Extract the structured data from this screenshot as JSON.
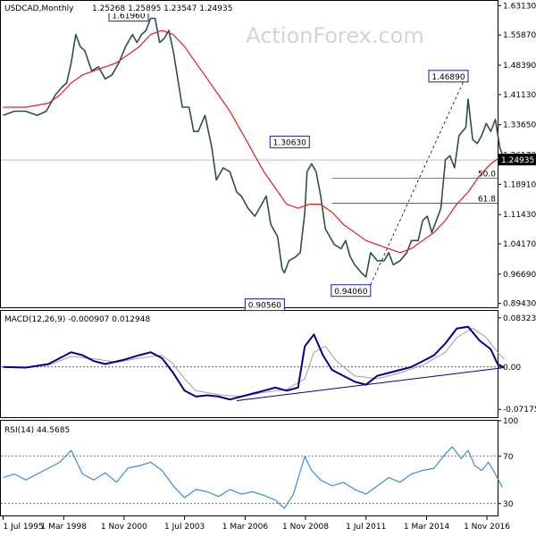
{
  "watermark": "ActionForex.com",
  "chart_data": {
    "type": "line",
    "colors": {
      "price": "#2f4f4f",
      "sma": "#e02020",
      "macd": "#00008b",
      "signal": "#a0a0a0",
      "rsi": "#3a8fd8",
      "guides": "#000000"
    },
    "x_range": [
      1995.4,
      2017.3
    ],
    "x_ticks": [
      {
        "value": 1995.5,
        "label": "1 Jul 1995"
      },
      {
        "value": 1998.17,
        "label": "1 Mar 1998"
      },
      {
        "value": 2000.83,
        "label": "1 Nov 2000"
      },
      {
        "value": 2003.5,
        "label": "1 Jul 2003"
      },
      {
        "value": 2006.17,
        "label": "1 Mar 2006"
      },
      {
        "value": 2008.83,
        "label": "1 Nov 2008"
      },
      {
        "value": 2011.5,
        "label": "1 Jul 2011"
      },
      {
        "value": 2014.17,
        "label": "1 Mar 2014"
      },
      {
        "value": 2016.83,
        "label": "1 Nov 2016"
      }
    ],
    "price_panel": {
      "title": "USDCAD,Monthly",
      "ohlc_text": "1.25268 1.25895 1.23547 1.24935",
      "ylim": [
        0.8848,
        1.6431
      ],
      "y_ticks": [
        1.6313,
        1.5587,
        1.4839,
        1.4113,
        1.3365,
        1.2617,
        1.1891,
        1.1143,
        1.0417,
        0.9669,
        0.8943
      ],
      "tick_labels": [
        "1.63130",
        "1.55870",
        "1.48390",
        "1.41130",
        "1.33650",
        "1.26170",
        "1.18910",
        "1.11430",
        "1.04170",
        "0.96690",
        "0.89430"
      ],
      "current_price": 1.24935,
      "current_label": "1.24935",
      "price_series": [
        [
          1995.5,
          1.36
        ],
        [
          1996.0,
          1.37
        ],
        [
          1996.5,
          1.37
        ],
        [
          1997.0,
          1.36
        ],
        [
          1997.4,
          1.37
        ],
        [
          1997.8,
          1.41
        ],
        [
          1998.1,
          1.43
        ],
        [
          1998.3,
          1.44
        ],
        [
          1998.5,
          1.49
        ],
        [
          1998.7,
          1.56
        ],
        [
          1998.9,
          1.53
        ],
        [
          1999.1,
          1.52
        ],
        [
          1999.4,
          1.47
        ],
        [
          1999.7,
          1.48
        ],
        [
          2000.0,
          1.45
        ],
        [
          2000.3,
          1.46
        ],
        [
          2000.6,
          1.49
        ],
        [
          2000.9,
          1.53
        ],
        [
          2001.2,
          1.56
        ],
        [
          2001.4,
          1.54
        ],
        [
          2001.6,
          1.56
        ],
        [
          2001.8,
          1.57
        ],
        [
          2002.0,
          1.6
        ],
        [
          2002.2,
          1.6
        ],
        [
          2002.4,
          1.54
        ],
        [
          2002.6,
          1.55
        ],
        [
          2002.8,
          1.57
        ],
        [
          2003.0,
          1.52
        ],
        [
          2003.2,
          1.45
        ],
        [
          2003.4,
          1.38
        ],
        [
          2003.7,
          1.38
        ],
        [
          2003.9,
          1.32
        ],
        [
          2004.1,
          1.32
        ],
        [
          2004.4,
          1.36
        ],
        [
          2004.7,
          1.28
        ],
        [
          2004.9,
          1.2
        ],
        [
          2005.2,
          1.23
        ],
        [
          2005.5,
          1.22
        ],
        [
          2005.8,
          1.17
        ],
        [
          2006.0,
          1.16
        ],
        [
          2006.3,
          1.13
        ],
        [
          2006.6,
          1.11
        ],
        [
          2006.9,
          1.14
        ],
        [
          2007.1,
          1.16
        ],
        [
          2007.3,
          1.09
        ],
        [
          2007.6,
          1.06
        ],
        [
          2007.8,
          0.98
        ],
        [
          2007.9,
          0.97
        ],
        [
          2008.1,
          1.0
        ],
        [
          2008.4,
          1.01
        ],
        [
          2008.6,
          1.02
        ],
        [
          2008.8,
          1.12
        ],
        [
          2008.9,
          1.22
        ],
        [
          2009.1,
          1.24
        ],
        [
          2009.3,
          1.22
        ],
        [
          2009.5,
          1.16
        ],
        [
          2009.7,
          1.08
        ],
        [
          2009.9,
          1.06
        ],
        [
          2010.1,
          1.04
        ],
        [
          2010.4,
          1.03
        ],
        [
          2010.6,
          1.05
        ],
        [
          2010.8,
          1.01
        ],
        [
          2011.0,
          0.99
        ],
        [
          2011.3,
          0.97
        ],
        [
          2011.5,
          0.96
        ],
        [
          2011.7,
          1.02
        ],
        [
          2012.0,
          1.0
        ],
        [
          2012.3,
          1.0
        ],
        [
          2012.5,
          1.02
        ],
        [
          2012.7,
          0.99
        ],
        [
          2013.0,
          1.0
        ],
        [
          2013.3,
          1.02
        ],
        [
          2013.5,
          1.05
        ],
        [
          2013.8,
          1.05
        ],
        [
          2014.0,
          1.1
        ],
        [
          2014.2,
          1.11
        ],
        [
          2014.4,
          1.07
        ],
        [
          2014.6,
          1.1
        ],
        [
          2014.8,
          1.13
        ],
        [
          2015.0,
          1.25
        ],
        [
          2015.2,
          1.26
        ],
        [
          2015.4,
          1.23
        ],
        [
          2015.6,
          1.31
        ],
        [
          2015.9,
          1.33
        ],
        [
          2016.0,
          1.4
        ],
        [
          2016.2,
          1.3
        ],
        [
          2016.4,
          1.29
        ],
        [
          2016.6,
          1.31
        ],
        [
          2016.8,
          1.34
        ],
        [
          2017.0,
          1.32
        ],
        [
          2017.2,
          1.35
        ],
        [
          2017.4,
          1.28
        ],
        [
          2017.6,
          1.25
        ]
      ],
      "sma_series": [
        [
          1995.5,
          1.38
        ],
        [
          1996.5,
          1.38
        ],
        [
          1997.5,
          1.39
        ],
        [
          1998.0,
          1.41
        ],
        [
          1998.5,
          1.44
        ],
        [
          1999.0,
          1.46
        ],
        [
          1999.5,
          1.47
        ],
        [
          2000.0,
          1.48
        ],
        [
          2000.5,
          1.49
        ],
        [
          2001.0,
          1.51
        ],
        [
          2001.5,
          1.53
        ],
        [
          2002.0,
          1.56
        ],
        [
          2002.5,
          1.57
        ],
        [
          2003.0,
          1.56
        ],
        [
          2003.5,
          1.53
        ],
        [
          2004.0,
          1.49
        ],
        [
          2004.5,
          1.45
        ],
        [
          2005.0,
          1.41
        ],
        [
          2005.5,
          1.37
        ],
        [
          2006.0,
          1.32
        ],
        [
          2006.5,
          1.27
        ],
        [
          2007.0,
          1.22
        ],
        [
          2007.5,
          1.18
        ],
        [
          2008.0,
          1.14
        ],
        [
          2008.5,
          1.13
        ],
        [
          2009.0,
          1.14
        ],
        [
          2009.5,
          1.14
        ],
        [
          2010.0,
          1.12
        ],
        [
          2010.5,
          1.09
        ],
        [
          2011.0,
          1.07
        ],
        [
          2011.5,
          1.05
        ],
        [
          2012.0,
          1.04
        ],
        [
          2012.5,
          1.03
        ],
        [
          2013.0,
          1.02
        ],
        [
          2013.5,
          1.03
        ],
        [
          2014.0,
          1.05
        ],
        [
          2014.5,
          1.07
        ],
        [
          2015.0,
          1.1
        ],
        [
          2015.5,
          1.14
        ],
        [
          2016.0,
          1.17
        ],
        [
          2016.5,
          1.21
        ],
        [
          2017.0,
          1.24
        ],
        [
          2017.5,
          1.26
        ]
      ],
      "annotations": [
        {
          "label": "1.61960",
          "x": 2001.9,
          "y": 1.6196
        },
        {
          "label": "0.90560",
          "x": 2007.9,
          "y": 0.9056
        },
        {
          "label": "1.30630",
          "x": 2009.0,
          "y": 1.3063
        },
        {
          "label": "0.94060",
          "x": 2011.7,
          "y": 0.9406
        },
        {
          "label": "1.46890",
          "x": 2016.0,
          "y": 1.4689
        }
      ],
      "trend_line": {
        "from": [
          2011.7,
          0.9406
        ],
        "to": [
          2016.0,
          1.4689
        ]
      },
      "fib_levels": [
        {
          "label": "50.0",
          "y": 1.2048
        },
        {
          "label": "61.8",
          "y": 1.1425
        }
      ]
    },
    "macd_panel": {
      "label": "MACD(12,26,9) -0.000907 0.012948",
      "ylim": [
        -0.085,
        0.095
      ],
      "y_ticks": [
        0.083235,
        0.0,
        -0.071752
      ],
      "tick_labels": [
        "0.083235",
        "0.00",
        "-0.071752"
      ],
      "macd_series": [
        [
          1995.5,
          0.0
        ],
        [
          1996.5,
          -0.001
        ],
        [
          1997.5,
          0.005
        ],
        [
          1998.5,
          0.025
        ],
        [
          1999.0,
          0.02
        ],
        [
          1999.5,
          0.01
        ],
        [
          2000.0,
          0.005
        ],
        [
          2000.8,
          0.012
        ],
        [
          2001.5,
          0.02
        ],
        [
          2002.0,
          0.025
        ],
        [
          2002.5,
          0.015
        ],
        [
          2003.0,
          -0.01
        ],
        [
          2003.5,
          -0.04
        ],
        [
          2004.0,
          -0.05
        ],
        [
          2004.5,
          -0.048
        ],
        [
          2005.0,
          -0.05
        ],
        [
          2005.5,
          -0.055
        ],
        [
          2006.0,
          -0.05
        ],
        [
          2006.5,
          -0.045
        ],
        [
          2007.0,
          -0.04
        ],
        [
          2007.5,
          -0.035
        ],
        [
          2008.0,
          -0.04
        ],
        [
          2008.5,
          -0.035
        ],
        [
          2008.8,
          0.035
        ],
        [
          2009.2,
          0.055
        ],
        [
          2009.6,
          0.02
        ],
        [
          2010.0,
          -0.005
        ],
        [
          2010.5,
          -0.015
        ],
        [
          2011.0,
          -0.025
        ],
        [
          2011.5,
          -0.03
        ],
        [
          2012.0,
          -0.015
        ],
        [
          2012.5,
          -0.01
        ],
        [
          2013.0,
          -0.005
        ],
        [
          2013.5,
          0.0
        ],
        [
          2014.0,
          0.01
        ],
        [
          2014.5,
          0.02
        ],
        [
          2015.0,
          0.04
        ],
        [
          2015.5,
          0.065
        ],
        [
          2016.0,
          0.068
        ],
        [
          2016.5,
          0.045
        ],
        [
          2017.0,
          0.03
        ],
        [
          2017.3,
          0.005
        ],
        [
          2017.6,
          -0.001
        ]
      ],
      "signal_series": [
        [
          1995.5,
          0.0
        ],
        [
          1996.5,
          0.0
        ],
        [
          1997.5,
          0.003
        ],
        [
          1998.5,
          0.018
        ],
        [
          1999.5,
          0.014
        ],
        [
          2000.5,
          0.008
        ],
        [
          2001.5,
          0.015
        ],
        [
          2002.5,
          0.02
        ],
        [
          2003.0,
          0.005
        ],
        [
          2003.5,
          -0.02
        ],
        [
          2004.0,
          -0.04
        ],
        [
          2005.0,
          -0.047
        ],
        [
          2006.0,
          -0.05
        ],
        [
          2007.0,
          -0.043
        ],
        [
          2008.0,
          -0.038
        ],
        [
          2008.8,
          -0.02
        ],
        [
          2009.2,
          0.025
        ],
        [
          2009.7,
          0.035
        ],
        [
          2010.2,
          0.01
        ],
        [
          2011.0,
          -0.015
        ],
        [
          2012.0,
          -0.02
        ],
        [
          2013.0,
          -0.01
        ],
        [
          2014.0,
          0.003
        ],
        [
          2015.0,
          0.025
        ],
        [
          2015.5,
          0.05
        ],
        [
          2016.2,
          0.066
        ],
        [
          2016.8,
          0.05
        ],
        [
          2017.3,
          0.025
        ],
        [
          2017.6,
          0.013
        ]
      ],
      "trend_line": {
        "from": [
          2005.8,
          -0.057
        ],
        "to": [
          2017.6,
          -0.001
        ]
      }
    },
    "rsi_panel": {
      "label": "RSI(14) 44.5685",
      "ylim": [
        20,
        100
      ],
      "y_ticks": [
        100,
        70,
        30
      ],
      "tick_labels": [
        "100",
        "70",
        "30"
      ],
      "guide_levels": [
        70,
        30
      ],
      "rsi_series": [
        [
          1995.5,
          52
        ],
        [
          1996.0,
          55
        ],
        [
          1996.5,
          50
        ],
        [
          1997.0,
          55
        ],
        [
          1997.5,
          60
        ],
        [
          1998.0,
          65
        ],
        [
          1998.5,
          75
        ],
        [
          1999.0,
          55
        ],
        [
          1999.5,
          50
        ],
        [
          2000.0,
          56
        ],
        [
          2000.5,
          48
        ],
        [
          2001.0,
          60
        ],
        [
          2001.5,
          62
        ],
        [
          2002.0,
          65
        ],
        [
          2002.5,
          58
        ],
        [
          2003.0,
          45
        ],
        [
          2003.5,
          35
        ],
        [
          2004.0,
          42
        ],
        [
          2004.5,
          40
        ],
        [
          2005.0,
          36
        ],
        [
          2005.5,
          42
        ],
        [
          2006.0,
          38
        ],
        [
          2006.5,
          40
        ],
        [
          2007.0,
          37
        ],
        [
          2007.5,
          33
        ],
        [
          2007.9,
          26
        ],
        [
          2008.3,
          38
        ],
        [
          2008.8,
          70
        ],
        [
          2009.1,
          58
        ],
        [
          2009.5,
          50
        ],
        [
          2010.0,
          45
        ],
        [
          2010.5,
          48
        ],
        [
          2011.0,
          42
        ],
        [
          2011.5,
          38
        ],
        [
          2012.0,
          45
        ],
        [
          2012.5,
          52
        ],
        [
          2013.0,
          48
        ],
        [
          2013.5,
          55
        ],
        [
          2014.0,
          58
        ],
        [
          2014.5,
          60
        ],
        [
          2015.0,
          72
        ],
        [
          2015.3,
          78
        ],
        [
          2015.7,
          68
        ],
        [
          2016.0,
          75
        ],
        [
          2016.3,
          62
        ],
        [
          2016.6,
          58
        ],
        [
          2016.9,
          65
        ],
        [
          2017.2,
          55
        ],
        [
          2017.5,
          44
        ]
      ]
    }
  }
}
